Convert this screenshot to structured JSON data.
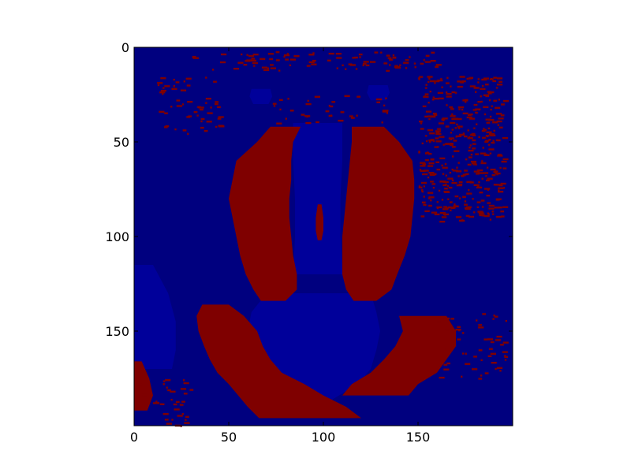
{
  "chart_data": {
    "type": "heatmap",
    "title": "",
    "xlabel": "",
    "ylabel": "",
    "xlim": [
      0,
      200
    ],
    "ylim": [
      200,
      0
    ],
    "grid": false,
    "xticks": [
      {
        "value": 0,
        "label": "0"
      },
      {
        "value": 50,
        "label": "50"
      },
      {
        "value": 100,
        "label": "100"
      },
      {
        "value": 150,
        "label": "150"
      }
    ],
    "yticks": [
      {
        "value": 0,
        "label": "0"
      },
      {
        "value": 50,
        "label": "50"
      },
      {
        "value": 100,
        "label": "100"
      },
      {
        "value": 150,
        "label": "150"
      }
    ],
    "colormap": "jet",
    "colors": {
      "background": "#00007f",
      "low_region": "#00009a",
      "high_region": "#7f0000"
    },
    "image_description": "binary thresholded mandrill face",
    "high_regions": [
      {
        "name": "left-cheek",
        "rows": [
          [
            42,
            72,
            88
          ],
          [
            50,
            65,
            84
          ],
          [
            60,
            54,
            83
          ],
          [
            70,
            52,
            83
          ],
          [
            80,
            50,
            82
          ],
          [
            90,
            52,
            82
          ],
          [
            100,
            54,
            83
          ],
          [
            110,
            56,
            84
          ],
          [
            120,
            59,
            86
          ],
          [
            128,
            63,
            86
          ],
          [
            134,
            67,
            80
          ]
        ]
      },
      {
        "name": "right-cheek",
        "rows": [
          [
            42,
            115,
            132
          ],
          [
            50,
            115,
            140
          ],
          [
            60,
            114,
            147
          ],
          [
            70,
            113,
            148
          ],
          [
            80,
            112,
            148
          ],
          [
            90,
            111,
            147
          ],
          [
            100,
            110,
            146
          ],
          [
            110,
            110,
            143
          ],
          [
            120,
            110,
            139
          ],
          [
            128,
            112,
            136
          ],
          [
            134,
            116,
            128
          ]
        ]
      },
      {
        "name": "mouth-arc",
        "rows": [
          [
            136,
            36,
            50
          ],
          [
            142,
            33,
            58
          ],
          [
            150,
            34,
            65
          ],
          [
            158,
            37,
            68
          ],
          [
            165,
            40,
            72
          ],
          [
            172,
            44,
            78
          ],
          [
            178,
            50,
            90
          ],
          [
            184,
            55,
            100
          ],
          [
            190,
            60,
            112
          ],
          [
            196,
            66,
            120
          ]
        ]
      },
      {
        "name": "mouth-arc-right",
        "rows": [
          [
            142,
            140,
            165
          ],
          [
            150,
            142,
            170
          ],
          [
            158,
            138,
            170
          ],
          [
            165,
            132,
            165
          ],
          [
            172,
            125,
            160
          ],
          [
            178,
            115,
            150
          ],
          [
            184,
            110,
            145
          ]
        ]
      },
      {
        "name": "nose-streak",
        "rows": [
          [
            83,
            97,
            99
          ],
          [
            90,
            96,
            100
          ],
          [
            97,
            96,
            100
          ],
          [
            102,
            97,
            99
          ]
        ]
      },
      {
        "name": "left-edge",
        "rows": [
          [
            166,
            0,
            4
          ],
          [
            175,
            0,
            8
          ],
          [
            184,
            0,
            10
          ],
          [
            192,
            0,
            7
          ]
        ]
      }
    ],
    "low_regions": [
      {
        "name": "nose-bridge",
        "rows": [
          [
            40,
            84,
            110
          ],
          [
            60,
            84,
            110
          ],
          [
            80,
            85,
            109
          ],
          [
            100,
            85,
            109
          ],
          [
            120,
            84,
            110
          ]
        ]
      },
      {
        "name": "muzzle",
        "rows": [
          [
            130,
            70,
            125
          ],
          [
            140,
            62,
            128
          ],
          [
            150,
            60,
            130
          ],
          [
            160,
            62,
            128
          ],
          [
            170,
            65,
            125
          ],
          [
            178,
            72,
            118
          ],
          [
            186,
            85,
            105
          ],
          [
            193,
            90,
            100
          ]
        ]
      },
      {
        "name": "left-side-patch",
        "rows": [
          [
            115,
            0,
            10
          ],
          [
            130,
            0,
            18
          ],
          [
            145,
            0,
            22
          ],
          [
            160,
            0,
            22
          ],
          [
            170,
            0,
            20
          ]
        ]
      },
      {
        "name": "left-eye",
        "rows": [
          [
            22,
            62,
            72
          ],
          [
            26,
            61,
            73
          ],
          [
            30,
            63,
            71
          ]
        ]
      },
      {
        "name": "right-eye",
        "rows": [
          [
            20,
            124,
            134
          ],
          [
            24,
            123,
            135
          ],
          [
            28,
            125,
            133
          ]
        ]
      }
    ],
    "speckle_zones": [
      {
        "name": "top-band",
        "x": [
          30,
          160
        ],
        "y": [
          2,
          12
        ],
        "density": 0.07
      },
      {
        "name": "upper-left",
        "x": [
          12,
          45
        ],
        "y": [
          15,
          48
        ],
        "density": 0.05
      },
      {
        "name": "right-side",
        "x": [
          150,
          195
        ],
        "y": [
          15,
          92
        ],
        "density": 0.12
      },
      {
        "name": "between-brows",
        "x": [
          72,
          135
        ],
        "y": [
          25,
          40
        ],
        "density": 0.04
      },
      {
        "name": "lower-left",
        "x": [
          0,
          30
        ],
        "y": [
          175,
          200
        ],
        "density": 0.05
      },
      {
        "name": "lower-right",
        "x": [
          160,
          200
        ],
        "y": [
          140,
          175
        ],
        "density": 0.04
      }
    ]
  }
}
